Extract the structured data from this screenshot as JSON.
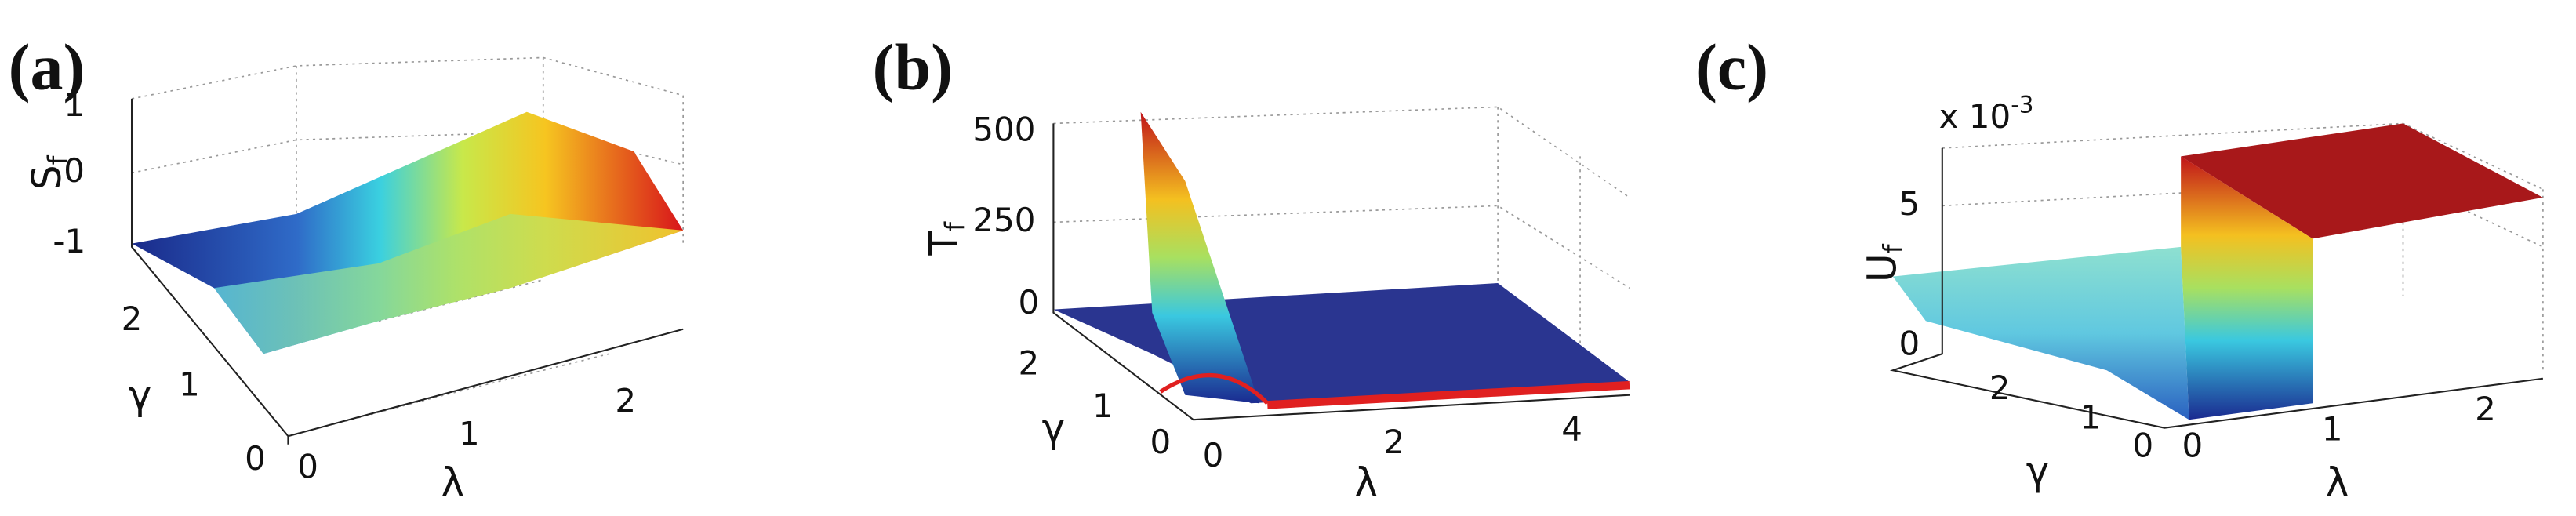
{
  "panels": [
    {
      "label": "(a)",
      "zlabel": {
        "base": "S",
        "sub": "f"
      },
      "zticks": [
        "1",
        "0",
        "-1"
      ],
      "ylabel": "γ",
      "yticks": [
        "2",
        "1",
        "0"
      ],
      "xlabel": "λ",
      "xticks": [
        "0",
        "1",
        "2"
      ]
    },
    {
      "label": "(b)",
      "zlabel": {
        "base": "T",
        "sub": "f"
      },
      "zticks": [
        "500",
        "250",
        "0"
      ],
      "ylabel": "γ",
      "yticks": [
        "2",
        "1",
        "0"
      ],
      "xlabel": "λ",
      "xticks": [
        "0",
        "2",
        "4"
      ]
    },
    {
      "label": "(c)",
      "multiplier": {
        "base": "x 10",
        "exp": "-3"
      },
      "zlabel": {
        "base": "U",
        "sub": "f"
      },
      "zticks": [
        "5",
        "0"
      ],
      "ylabel": "γ",
      "yticks": [
        "2",
        "1",
        "0"
      ],
      "xlabel": "λ",
      "xticks": [
        "0",
        "1",
        "2"
      ]
    }
  ]
}
